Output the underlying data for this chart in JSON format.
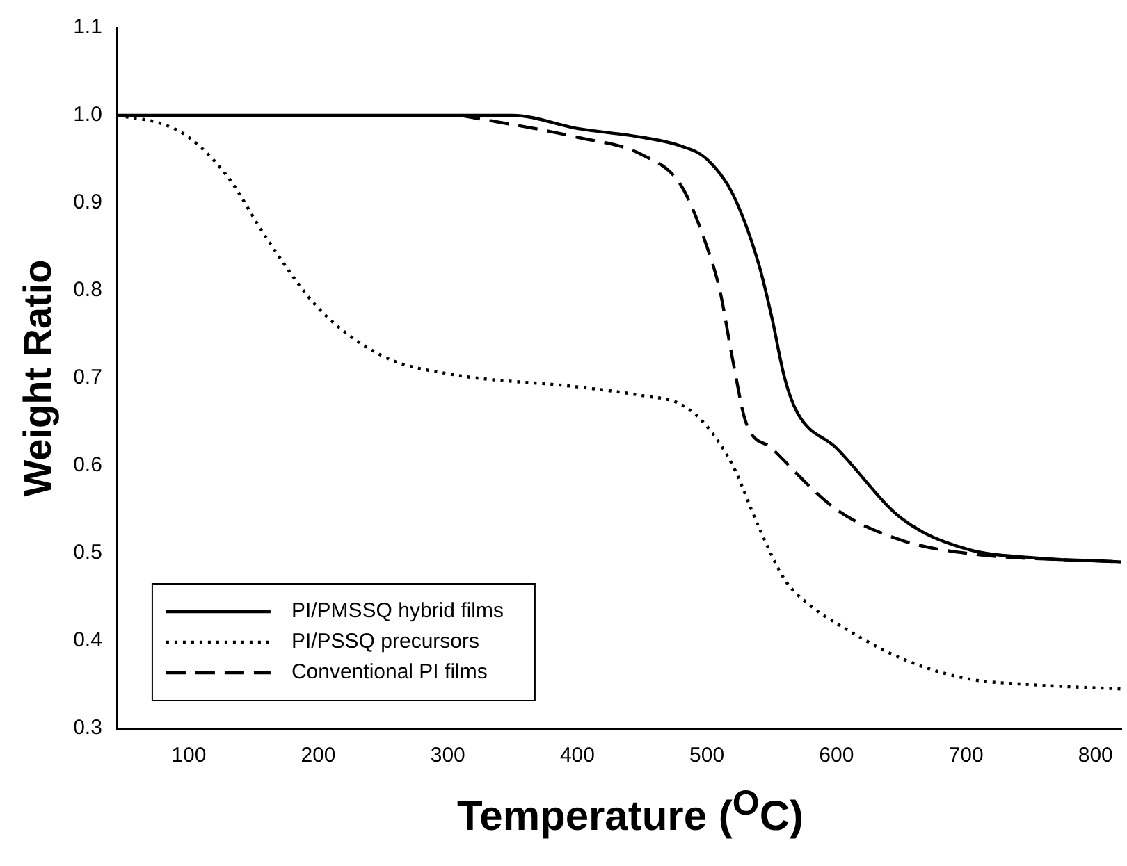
{
  "chart_data": {
    "type": "line",
    "xlabel": "Temperature ($^{O}$C)",
    "ylabel": "Weight Ratio",
    "xlim": [
      45,
      820
    ],
    "xticks": [
      100,
      200,
      300,
      400,
      500,
      600,
      700,
      800
    ],
    "ylim": [
      0.3,
      1.1
    ],
    "yticks": [
      0.3,
      0.4,
      0.5,
      0.6,
      0.7,
      0.8,
      0.9,
      {
        "value": 1,
        "label": "1.0"
      },
      1.1
    ],
    "legend": "bottom left",
    "grid": false,
    "marker": "none",
    "series": [
      {
        "name": "PI/PMSSQ hybrid films",
        "color": "#000000",
        "line_style": "solid",
        "x": [
          45,
          350,
          400,
          450,
          480,
          500,
          520,
          540,
          550,
          560,
          570,
          600,
          650,
          700,
          750,
          820
        ],
        "values": [
          1.0,
          1.0,
          0.985,
          0.975,
          0.965,
          0.95,
          0.91,
          0.83,
          0.77,
          0.7,
          0.66,
          0.62,
          0.54,
          0.505,
          0.495,
          0.49
        ]
      },
      {
        "name": "PI/PSSQ precursors",
        "color": "#000000",
        "line_style": "dotted",
        "x": [
          45,
          80,
          100,
          130,
          160,
          200,
          250,
          300,
          400,
          450,
          480,
          500,
          520,
          540,
          560,
          580,
          600,
          650,
          700,
          750,
          820
        ],
        "values": [
          1.0,
          0.99,
          0.975,
          0.93,
          0.86,
          0.78,
          0.725,
          0.705,
          0.69,
          0.68,
          0.67,
          0.645,
          0.6,
          0.53,
          0.47,
          0.44,
          0.42,
          0.38,
          0.357,
          0.35,
          0.345
        ]
      },
      {
        "name": "Conventional PI films",
        "color": "#000000",
        "line_style": "dashed",
        "x": [
          310,
          400,
          450,
          480,
          500,
          510,
          520,
          530,
          550,
          600,
          650,
          700,
          820
        ],
        "values": [
          1.0,
          0.975,
          0.955,
          0.92,
          0.85,
          0.8,
          0.72,
          0.65,
          0.62,
          0.55,
          0.515,
          0.5,
          0.49
        ]
      }
    ]
  }
}
